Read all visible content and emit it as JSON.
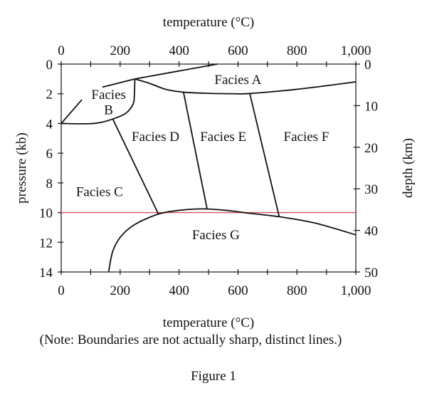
{
  "chart_data": {
    "type": "phase-diagram",
    "title_top_axis": "temperature (°C)",
    "xlabel": "temperature (°C)",
    "ylabel_left": "pressure (kb)",
    "ylabel_right": "depth (km)",
    "xlim": [
      0,
      1000
    ],
    "ylim_left": [
      0,
      14
    ],
    "ylim_right": [
      0,
      50
    ],
    "y_inverted": true,
    "x_ticks": [
      "0",
      "200",
      "400",
      "600",
      "800",
      "1,000"
    ],
    "x_tick_values": [
      0,
      200,
      400,
      600,
      800,
      1000
    ],
    "y_left_ticks": [
      0,
      2,
      4,
      6,
      8,
      10,
      12,
      14
    ],
    "y_right_ticks": [
      0,
      10,
      20,
      30,
      40,
      50
    ],
    "boundaries": [
      {
        "points": [
          [
            250,
            1.0
          ],
          [
            530,
            0.0
          ]
        ]
      },
      {
        "points": [
          [
            140,
            1.55
          ],
          [
            250,
            1.0
          ]
        ]
      },
      {
        "points": [
          [
            0,
            4.0
          ],
          [
            70,
            2.4
          ]
        ]
      },
      {
        "points": [
          [
            250,
            1.0
          ],
          [
            248,
            2.2
          ],
          [
            244,
            2.7
          ],
          [
            220,
            3.3
          ],
          [
            175,
            3.7
          ],
          [
            110,
            4.0
          ],
          [
            0,
            4.0
          ]
        ]
      },
      {
        "points": [
          [
            250,
            1.0
          ],
          [
            300,
            1.3
          ],
          [
            355,
            1.7
          ],
          [
            415,
            1.89
          ],
          [
            500,
            1.97
          ],
          [
            594,
            2.0
          ],
          [
            640,
            1.98
          ],
          [
            800,
            1.7
          ],
          [
            1000,
            1.2
          ]
        ]
      },
      {
        "points": [
          [
            175,
            3.7
          ],
          [
            330,
            10.1
          ]
        ]
      },
      {
        "points": [
          [
            415,
            1.89
          ],
          [
            495,
            9.73
          ]
        ]
      },
      {
        "points": [
          [
            640,
            1.98
          ],
          [
            740,
            10.28
          ]
        ]
      },
      {
        "points": [
          [
            161,
            14.0
          ],
          [
            175,
            12.6
          ],
          [
            203,
            11.6
          ],
          [
            250,
            10.8
          ],
          [
            330,
            10.1
          ],
          [
            400,
            9.85
          ],
          [
            480,
            9.75
          ],
          [
            560,
            9.85
          ],
          [
            640,
            10.05
          ],
          [
            740,
            10.28
          ],
          [
            860,
            10.7
          ],
          [
            1000,
            11.5
          ]
        ]
      }
    ],
    "reference_line": {
      "pressure": 10,
      "color": "#d9534f"
    },
    "regions": [
      {
        "label": "Facies A",
        "T": 600,
        "P": 1.05
      },
      {
        "label": "Facies",
        "T": 161,
        "P": 2.05
      },
      {
        "label": "B",
        "T": 161,
        "P": 3.1
      },
      {
        "label": "Facies C",
        "T": 130,
        "P": 8.6
      },
      {
        "label": "Facies D",
        "T": 320,
        "P": 4.9
      },
      {
        "label": "Facies E",
        "T": 550,
        "P": 4.9
      },
      {
        "label": "Facies F",
        "T": 832,
        "P": 4.9
      },
      {
        "label": "Facies G",
        "T": 525,
        "P": 11.5
      }
    ]
  },
  "note": "(Note: Boundaries are not actually sharp, distinct lines.)",
  "caption": "Figure 1"
}
